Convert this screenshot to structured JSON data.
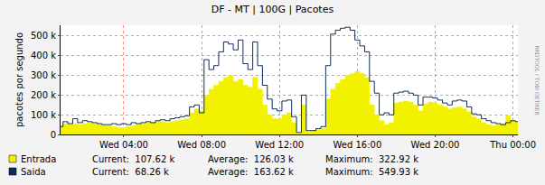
{
  "chart_data": {
    "type": "line",
    "title": "DF - MT | 100G | Pacotes",
    "y_label": "pacotes por segundo",
    "annotations": [
      {
        "text": "RRDTOOL / TOBI OETIKER"
      }
    ],
    "categories": [
      null,
      null,
      null,
      null,
      null,
      null,
      null,
      null,
      null,
      null,
      null,
      null,
      null,
      "Wed 04:00",
      null,
      null,
      null,
      null,
      null,
      null,
      null,
      null,
      null,
      null,
      null,
      null,
      null,
      null,
      null,
      "Wed 08:00",
      null,
      null,
      null,
      null,
      null,
      null,
      null,
      null,
      null,
      null,
      null,
      null,
      null,
      null,
      null,
      "Wed 12:00",
      null,
      null,
      null,
      null,
      null,
      null,
      null,
      null,
      null,
      null,
      null,
      null,
      null,
      null,
      null,
      "Wed 16:00",
      null,
      null,
      null,
      null,
      null,
      null,
      null,
      null,
      null,
      null,
      null,
      null,
      null,
      null,
      null,
      "Wed 20:00",
      null,
      null,
      null,
      null,
      null,
      null,
      null,
      null,
      null,
      null,
      null,
      null,
      null,
      null,
      null,
      "Thu 00:00",
      null
    ],
    "series": [
      {
        "name": "Entrada",
        "type": "area",
        "color": "#f2f200",
        "values": [
          45000,
          55000,
          50000,
          55000,
          50000,
          55000,
          60000,
          55000,
          50000,
          45000,
          45000,
          40000,
          35000,
          35000,
          40000,
          45000,
          50000,
          55000,
          60000,
          60000,
          65000,
          65000,
          60000,
          65000,
          70000,
          75000,
          80000,
          110000,
          130000,
          120000,
          200000,
          230000,
          250000,
          270000,
          290000,
          300000,
          270000,
          280000,
          250000,
          240000,
          290000,
          230000,
          150000,
          100000,
          80000,
          80000,
          100000,
          110000,
          60000,
          5000,
          150000,
          15000,
          20000,
          25000,
          30000,
          180000,
          230000,
          260000,
          280000,
          300000,
          310000,
          320000,
          310000,
          290000,
          150000,
          100000,
          70000,
          50000,
          60000,
          160000,
          165000,
          170000,
          165000,
          150000,
          120000,
          155000,
          165000,
          160000,
          150000,
          140000,
          130000,
          135000,
          140000,
          130000,
          115000,
          90000,
          80000,
          60000,
          50000,
          45000,
          50000,
          55000,
          95000,
          70000,
          60000
        ],
        "stats": [
          {
            "label": "Current:",
            "value": 107620,
            "value_label": "107.62 k"
          },
          {
            "label": "Average:",
            "value": 126030,
            "value_label": "126.03 k"
          },
          {
            "label": "Maximum:",
            "value": 322920,
            "value_label": "322.92 k"
          }
        ]
      },
      {
        "name": "Saida",
        "type": "line",
        "color": "#0c2d57",
        "values": [
          40000,
          65000,
          55000,
          80000,
          60000,
          70000,
          65000,
          60000,
          55000,
          50000,
          50000,
          55000,
          50000,
          55000,
          50000,
          60000,
          55000,
          60000,
          65000,
          60000,
          70000,
          75000,
          70000,
          80000,
          85000,
          90000,
          95000,
          140000,
          150000,
          110000,
          380000,
          330000,
          350000,
          420000,
          470000,
          460000,
          430000,
          480000,
          360000,
          330000,
          470000,
          350000,
          250000,
          180000,
          130000,
          120000,
          170000,
          175000,
          90000,
          10000,
          200000,
          20000,
          20000,
          30000,
          40000,
          350000,
          510000,
          530000,
          540000,
          545000,
          530000,
          480000,
          450000,
          420000,
          270000,
          210000,
          100000,
          110000,
          100000,
          210000,
          215000,
          220000,
          210000,
          200000,
          150000,
          190000,
          190000,
          185000,
          175000,
          160000,
          150000,
          170000,
          175000,
          170000,
          140000,
          105000,
          100000,
          80000,
          70000,
          60000,
          55000,
          50000,
          60000,
          70000,
          65000
        ],
        "stats": [
          {
            "label": "Current:",
            "value": 68260,
            "value_label": "68.26 k"
          },
          {
            "label": "Average:",
            "value": 163620,
            "value_label": "163.62 k"
          },
          {
            "label": "Maximum:",
            "value": 549930,
            "value_label": "549.93 k"
          }
        ]
      }
    ],
    "ylim": [
      0,
      555000
    ],
    "yticks": [
      0,
      {
        "value": 100000,
        "label": "100 k"
      },
      {
        "value": 200000,
        "label": "200 k"
      },
      {
        "value": 300000,
        "label": "300 k"
      },
      {
        "value": 400000,
        "label": "400 k"
      },
      {
        "value": 500000,
        "label": "500 k"
      }
    ],
    "grid": true
  }
}
